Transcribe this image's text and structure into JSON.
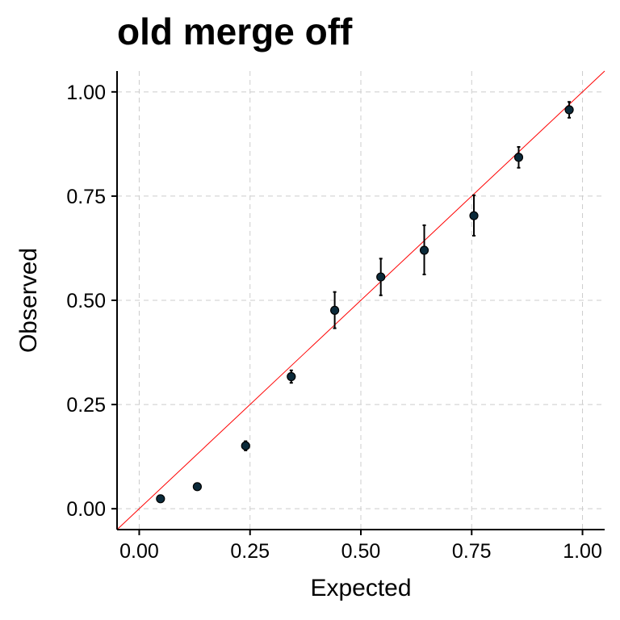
{
  "chart_data": {
    "type": "scatter",
    "title": "old merge off",
    "xlabel": "Expected",
    "ylabel": "Observed",
    "xlim": [
      -0.05,
      1.05
    ],
    "ylim": [
      -0.05,
      1.05
    ],
    "x_ticks": [
      0.0,
      0.25,
      0.5,
      0.75,
      1.0
    ],
    "y_ticks": [
      0.0,
      0.25,
      0.5,
      0.75,
      1.0
    ],
    "x_tick_labels": [
      "0.00",
      "0.25",
      "0.50",
      "0.75",
      "1.00"
    ],
    "y_tick_labels": [
      "0.00",
      "0.25",
      "0.50",
      "0.75",
      "1.00"
    ],
    "grid": true,
    "reference_line": {
      "slope": 1,
      "intercept": 0,
      "color": "#ff0000"
    },
    "point_color": "#0b2a3a",
    "points": [
      {
        "x": 0.048,
        "y": 0.024,
        "lo": 0.02,
        "hi": 0.028
      },
      {
        "x": 0.131,
        "y": 0.053,
        "lo": 0.048,
        "hi": 0.058
      },
      {
        "x": 0.24,
        "y": 0.151,
        "lo": 0.14,
        "hi": 0.162
      },
      {
        "x": 0.343,
        "y": 0.317,
        "lo": 0.302,
        "hi": 0.332
      },
      {
        "x": 0.441,
        "y": 0.476,
        "lo": 0.433,
        "hi": 0.52
      },
      {
        "x": 0.545,
        "y": 0.556,
        "lo": 0.512,
        "hi": 0.6
      },
      {
        "x": 0.643,
        "y": 0.62,
        "lo": 0.562,
        "hi": 0.68
      },
      {
        "x": 0.755,
        "y": 0.703,
        "lo": 0.655,
        "hi": 0.752
      },
      {
        "x": 0.856,
        "y": 0.843,
        "lo": 0.818,
        "hi": 0.868
      },
      {
        "x": 0.97,
        "y": 0.957,
        "lo": 0.938,
        "hi": 0.976
      }
    ]
  }
}
